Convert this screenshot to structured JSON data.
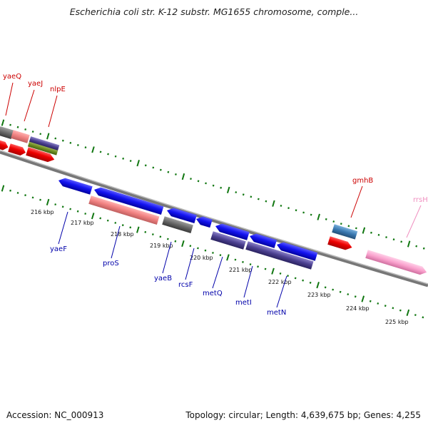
{
  "header": {
    "title": "Escherichia coli str. K-12 substr. MG1655 chromosome, comple..."
  },
  "footer": {
    "accession": "Accession: NC_000913",
    "summary": "Topology: circular; Length: 4,639,675 bp; Genes: 4,255"
  },
  "map": {
    "kbp_ticks": [
      "216 kbp",
      "217 kbp",
      "218 kbp",
      "219 kbp",
      "220 kbp",
      "221 kbp",
      "222 kbp",
      "223 kbp",
      "224 kbp",
      "225 kbp"
    ],
    "top_gene_labels": [
      "yaeQ",
      "yaeJ",
      "nlpE",
      "gmhB",
      "rrsH"
    ],
    "bottom_gene_labels": [
      "yaeF",
      "proS",
      "yaeB",
      "rcsF",
      "metQ",
      "metI",
      "metN"
    ],
    "colors": {
      "forward_red": "#e0001a",
      "reverse_blue": "#1010e0",
      "label_red": "#cc0000",
      "label_blue": "#0000aa",
      "label_pink": "#f090c0",
      "tick_green": "#117711",
      "backbone": "#888888"
    }
  }
}
